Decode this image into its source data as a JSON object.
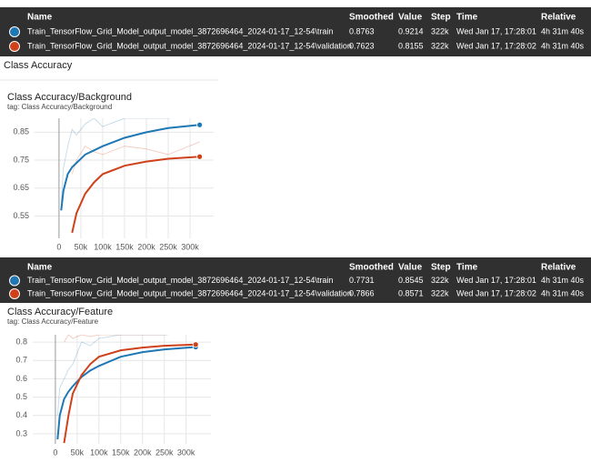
{
  "section_title": "Class Accuracy",
  "tooltips": [
    {
      "headers": [
        "Name",
        "Smoothed",
        "Value",
        "Step",
        "Time",
        "Relative"
      ],
      "rows": [
        [
          "0.8763",
          "0.9214",
          "322k",
          "Wed Jan 17, 17:28:01",
          "4h 31m 40s"
        ],
        [
          "0.7623",
          "0.8155",
          "322k",
          "Wed Jan 17, 17:28:02",
          "4h 31m 40s"
        ]
      ]
    },
    {
      "headers": [
        "Name",
        "Smoothed",
        "Value",
        "Step",
        "Time",
        "Relative"
      ],
      "rows": [
        [
          "0.7731",
          "0.8545",
          "322k",
          "Wed Jan 17, 17:28:01",
          "4h 31m 40s"
        ],
        [
          "0.7866",
          "0.8571",
          "322k",
          "Wed Jan 17, 17:28:02",
          "4h 31m 40s"
        ]
      ]
    }
  ],
  "chart_data": [
    {
      "type": "line",
      "title": "Class Accuracy/Background",
      "subtitle": "tag: Class Accuracy/Background",
      "x": [
        5000,
        10000,
        20000,
        30000,
        40000,
        60000,
        80000,
        100000,
        150000,
        200000,
        250000,
        322000
      ],
      "series": [
        {
          "name": "Train_TensorFlow_Grid_Model_output_model_3872696464_2024-01-17_12-54\\train",
          "color": "#1f77b4",
          "values": [
            0.57,
            0.64,
            0.7,
            0.725,
            0.74,
            0.77,
            0.785,
            0.8,
            0.83,
            0.85,
            0.865,
            0.8763
          ],
          "raw_values": [
            0.6,
            0.72,
            0.8,
            0.86,
            0.84,
            0.88,
            0.9,
            0.87,
            0.9,
            0.9,
            0.9,
            0.9214
          ]
        },
        {
          "name": "Train_TensorFlow_Grid_Model_output_model_3872696464_2024-01-17_12-54\\validation",
          "color": "#d0401b",
          "values": [
            null,
            null,
            null,
            0.49,
            0.56,
            0.63,
            0.67,
            0.7,
            0.73,
            0.745,
            0.755,
            0.7623
          ],
          "raw_values": [
            null,
            null,
            null,
            0.7,
            0.75,
            0.8,
            0.78,
            0.77,
            0.8,
            0.79,
            0.77,
            0.8155
          ]
        }
      ],
      "xlim": [
        -56000,
        354000
      ],
      "ylim": [
        0.47,
        0.9
      ],
      "xticks": [
        0,
        {
          "value": 50000,
          "label": "50k"
        },
        {
          "value": 100000,
          "label": "100k"
        },
        {
          "value": 150000,
          "label": "150k"
        },
        {
          "value": 200000,
          "label": "200k"
        },
        {
          "value": 250000,
          "label": "250k"
        },
        {
          "value": 300000,
          "label": "300k"
        }
      ],
      "yticks": [
        0.55,
        0.65,
        0.75,
        0.85
      ],
      "grid": true
    },
    {
      "type": "line",
      "title": "Class Accuracy/Feature",
      "subtitle": "tag: Class Accuracy/Feature",
      "x": [
        5000,
        10000,
        20000,
        30000,
        40000,
        60000,
        80000,
        100000,
        150000,
        200000,
        250000,
        322000
      ],
      "series": [
        {
          "name": "Train_TensorFlow_Grid_Model_output_model_3872696464_2024-01-17_12-54\\train",
          "color": "#1f77b4",
          "values": [
            0.27,
            0.4,
            0.49,
            0.53,
            0.56,
            0.61,
            0.645,
            0.67,
            0.72,
            0.745,
            0.76,
            0.7731
          ],
          "raw_values": [
            0.4,
            0.55,
            0.6,
            0.65,
            0.68,
            0.8,
            0.78,
            0.82,
            0.84,
            0.84,
            0.84,
            0.8545
          ]
        },
        {
          "name": "Train_TensorFlow_Grid_Model_output_model_3872696464_2024-01-17_12-54\\validation",
          "color": "#d0401b",
          "values": [
            null,
            null,
            0.25,
            0.4,
            0.52,
            0.62,
            0.68,
            0.72,
            0.755,
            0.77,
            0.78,
            0.7866
          ],
          "raw_values": [
            null,
            null,
            0.8,
            0.84,
            0.82,
            0.84,
            0.83,
            0.84,
            0.84,
            0.84,
            0.84,
            0.8571
          ]
        }
      ],
      "xlim": [
        -52000,
        357000
      ],
      "ylim": [
        0.245,
        0.84
      ],
      "xticks": [
        0,
        {
          "value": 50000,
          "label": "50k"
        },
        {
          "value": 100000,
          "label": "100k"
        },
        {
          "value": 150000,
          "label": "150k"
        },
        {
          "value": 200000,
          "label": "200k"
        },
        {
          "value": 250000,
          "label": "250k"
        },
        {
          "value": 300000,
          "label": "300k"
        }
      ],
      "yticks": [
        0.3,
        0.4,
        0.5,
        0.6,
        0.7,
        0.8
      ],
      "grid": true
    }
  ]
}
